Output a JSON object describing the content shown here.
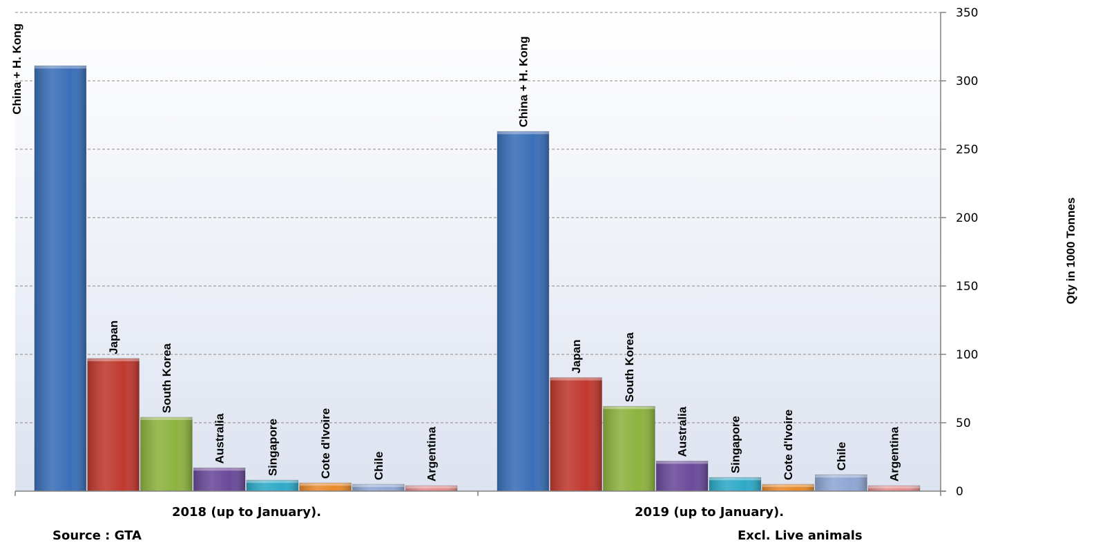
{
  "chart_data": {
    "type": "bar",
    "categories": [
      "2018 (up to January).",
      "2019 (up to January)."
    ],
    "series": [
      {
        "name": "China + H. Kong",
        "values": [
          311,
          263
        ],
        "color": "#3a6fb8"
      },
      {
        "name": "Japan",
        "values": [
          97,
          83
        ],
        "color": "#c0392f"
      },
      {
        "name": "South Korea",
        "values": [
          54,
          62
        ],
        "color": "#8db33f"
      },
      {
        "name": "Australia",
        "values": [
          17,
          22
        ],
        "color": "#6b4a9a"
      },
      {
        "name": "Singapore",
        "values": [
          8,
          10
        ],
        "color": "#2eaac8"
      },
      {
        "name": "Cote d'Ivoire",
        "values": [
          6,
          5
        ],
        "color": "#e88a2c"
      },
      {
        "name": "Chile",
        "values": [
          5,
          12
        ],
        "color": "#8fa7d4"
      },
      {
        "name": "Argentina",
        "values": [
          4,
          4
        ],
        "color": "#e08a88"
      }
    ],
    "ylabel": "Qty in 1000 Tonnes",
    "ylim": [
      0,
      350
    ],
    "yticks": [
      0,
      50,
      100,
      150,
      200,
      250,
      300,
      350
    ],
    "y_axis_side": "right",
    "grid": true,
    "legend": "none (bars labeled directly)"
  },
  "notes": {
    "source": "Source : GTA",
    "exclusion": "Excl. Live animals"
  }
}
